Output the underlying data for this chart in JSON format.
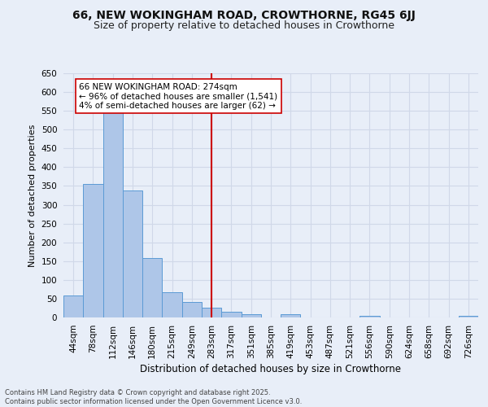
{
  "title": "66, NEW WOKINGHAM ROAD, CROWTHORNE, RG45 6JJ",
  "subtitle": "Size of property relative to detached houses in Crowthorne",
  "xlabel": "Distribution of detached houses by size in Crowthorne",
  "ylabel": "Number of detached properties",
  "categories": [
    "44sqm",
    "78sqm",
    "112sqm",
    "146sqm",
    "180sqm",
    "215sqm",
    "249sqm",
    "283sqm",
    "317sqm",
    "351sqm",
    "385sqm",
    "419sqm",
    "453sqm",
    "487sqm",
    "521sqm",
    "556sqm",
    "590sqm",
    "624sqm",
    "658sqm",
    "692sqm",
    "726sqm"
  ],
  "values": [
    58,
    355,
    545,
    337,
    158,
    68,
    42,
    25,
    16,
    9,
    0,
    9,
    0,
    0,
    0,
    5,
    0,
    0,
    0,
    0,
    5
  ],
  "bar_color": "#aec6e8",
  "bar_edge_color": "#5b9bd5",
  "grid_color": "#d0d8e8",
  "background_color": "#e8eef8",
  "vline_x": 7.0,
  "vline_color": "#cc0000",
  "annotation_text": "66 NEW WOKINGHAM ROAD: 274sqm\n← 96% of detached houses are smaller (1,541)\n4% of semi-detached houses are larger (62) →",
  "annotation_box_color": "#ffffff",
  "annotation_box_edge": "#cc0000",
  "footer": "Contains HM Land Registry data © Crown copyright and database right 2025.\nContains public sector information licensed under the Open Government Licence v3.0.",
  "ylim": [
    0,
    650
  ],
  "yticks": [
    0,
    50,
    100,
    150,
    200,
    250,
    300,
    350,
    400,
    450,
    500,
    550,
    600,
    650
  ],
  "title_fontsize": 10,
  "subtitle_fontsize": 9,
  "ylabel_fontsize": 8,
  "xlabel_fontsize": 8.5,
  "tick_fontsize": 7.5,
  "footer_fontsize": 6,
  "ann_fontsize": 7.5
}
